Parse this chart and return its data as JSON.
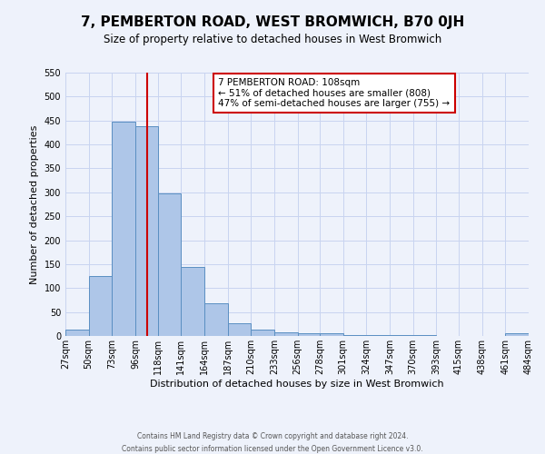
{
  "title": "7, PEMBERTON ROAD, WEST BROMWICH, B70 0JH",
  "subtitle": "Size of property relative to detached houses in West Bromwich",
  "xlabel": "Distribution of detached houses by size in West Bromwich",
  "ylabel": "Number of detached properties",
  "bin_edges": [
    27,
    50,
    73,
    96,
    118,
    141,
    164,
    187,
    210,
    233,
    256,
    278,
    301,
    324,
    347,
    370,
    393,
    415,
    438,
    461,
    484
  ],
  "bin_counts": [
    14,
    125,
    448,
    438,
    298,
    145,
    68,
    27,
    14,
    8,
    6,
    5,
    2,
    1,
    1,
    1,
    0,
    0,
    0,
    5
  ],
  "bar_color": "#aec6e8",
  "bar_edge_color": "#5a8fc2",
  "vline_color": "#cc0000",
  "vline_x": 108,
  "annotation_title": "7 PEMBERTON ROAD: 108sqm",
  "annotation_line1": "← 51% of detached houses are smaller (808)",
  "annotation_line2": "47% of semi-detached houses are larger (755) →",
  "annotation_box_color": "#ffffff",
  "annotation_box_edge_color": "#cc0000",
  "ylim": [
    0,
    550
  ],
  "yticks": [
    0,
    50,
    100,
    150,
    200,
    250,
    300,
    350,
    400,
    450,
    500,
    550
  ],
  "tick_labels": [
    "27sqm",
    "50sqm",
    "73sqm",
    "96sqm",
    "118sqm",
    "141sqm",
    "164sqm",
    "187sqm",
    "210sqm",
    "233sqm",
    "256sqm",
    "278sqm",
    "301sqm",
    "324sqm",
    "347sqm",
    "370sqm",
    "393sqm",
    "415sqm",
    "438sqm",
    "461sqm",
    "484sqm"
  ],
  "footer_line1": "Contains HM Land Registry data © Crown copyright and database right 2024.",
  "footer_line2": "Contains public sector information licensed under the Open Government Licence v3.0.",
  "bg_color": "#eef2fb",
  "grid_color": "#c8d4f0",
  "title_fontsize": 11,
  "subtitle_fontsize": 8.5,
  "ylabel_fontsize": 8,
  "xlabel_fontsize": 8,
  "tick_fontsize": 7,
  "footer_fontsize": 5.5
}
